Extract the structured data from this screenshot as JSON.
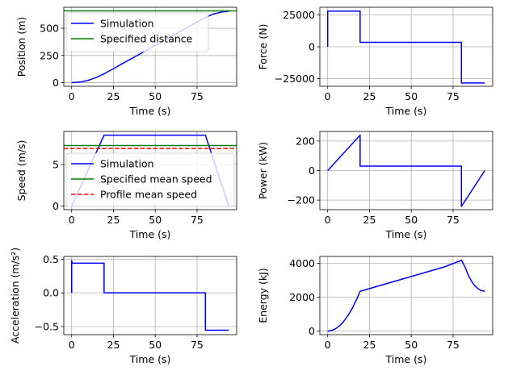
{
  "chart_data": [
    {
      "type": "line",
      "id": "position",
      "xlabel": "Time (s)",
      "ylabel": "Position (m)",
      "xlim": [
        -4.7,
        98.7
      ],
      "ylim": [
        -33,
        693
      ],
      "xticks": [
        0,
        25,
        50,
        75
      ],
      "yticks": [
        0,
        250,
        500
      ],
      "grid": true,
      "legend": "upper-left",
      "series": [
        {
          "name": "Simulation",
          "color": "#0000ff",
          "dash": "solid",
          "x": [
            0,
            5,
            10,
            15,
            19.4,
            25,
            30,
            40,
            50,
            60,
            70,
            80,
            85,
            90,
            94
          ],
          "y": [
            0,
            5.5,
            22,
            50,
            82,
            129,
            172,
            257,
            343,
            428,
            514,
            599,
            631,
            650,
            655
          ]
        },
        {
          "name": "Specified distance",
          "color": "#008000",
          "dash": "solid",
          "x": [
            -4.7,
            98.7
          ],
          "y": [
            660,
            660
          ]
        }
      ]
    },
    {
      "type": "line",
      "id": "force",
      "xlabel": "Time (s)",
      "ylabel": "Force (N)",
      "xlim": [
        -4.7,
        98.7
      ],
      "ylim": [
        -31000,
        31000
      ],
      "xticks": [
        0,
        25,
        50,
        75
      ],
      "yticks": [
        -25000,
        0,
        25000
      ],
      "grid": true,
      "series": [
        {
          "name": "Force",
          "color": "#0000ff",
          "dash": "solid",
          "x": [
            0,
            0,
            19.4,
            19.4,
            80,
            80,
            94
          ],
          "y": [
            0,
            28000,
            28000,
            3500,
            3500,
            -28400,
            -28400
          ]
        }
      ]
    },
    {
      "type": "line",
      "id": "speed",
      "xlabel": "Time (s)",
      "ylabel": "Speed (m/s)",
      "xlim": [
        -4.7,
        98.7
      ],
      "ylim": [
        -0.43,
        9.0
      ],
      "xticks": [
        0,
        25,
        50,
        75
      ],
      "yticks": [
        0,
        5
      ],
      "grid": true,
      "legend": "center-left",
      "series": [
        {
          "name": "Simulation",
          "color": "#0000ff",
          "dash": "solid",
          "x": [
            0,
            19.4,
            80,
            94
          ],
          "y": [
            0,
            8.55,
            8.55,
            0
          ]
        },
        {
          "name": "Specified mean speed",
          "color": "#008000",
          "dash": "solid",
          "x": [
            -4.7,
            98.7
          ],
          "y": [
            7.3,
            7.3
          ]
        },
        {
          "name": "Profile mean speed",
          "color": "#ff0000",
          "dash": "dashed",
          "x": [
            -4.7,
            98.7
          ],
          "y": [
            6.95,
            6.95
          ]
        }
      ]
    },
    {
      "type": "line",
      "id": "power",
      "xlabel": "Time (s)",
      "ylabel": "Power (kW)",
      "xlim": [
        -4.7,
        98.7
      ],
      "ylim": [
        -265,
        265
      ],
      "xticks": [
        0,
        25,
        50,
        75
      ],
      "yticks": [
        -200,
        0,
        200
      ],
      "grid": true,
      "series": [
        {
          "name": "Power",
          "color": "#0000ff",
          "dash": "solid",
          "x": [
            0,
            19.4,
            19.4,
            80,
            80,
            94
          ],
          "y": [
            0,
            240,
            30,
            30,
            -243,
            0
          ]
        }
      ]
    },
    {
      "type": "line",
      "id": "acceleration",
      "xlabel": "Time (s)",
      "ylabel": "Acceleration (m/s²)",
      "xlim": [
        -4.7,
        98.7
      ],
      "ylim": [
        -0.62,
        0.54
      ],
      "xticks": [
        0,
        25,
        50,
        75
      ],
      "yticks": [
        -0.5,
        0.0,
        0.5
      ],
      "ytickLabels": [
        "−0.5",
        "0.0",
        "0.5"
      ],
      "grid": true,
      "series": [
        {
          "name": "Acceleration",
          "color": "#0000ff",
          "dash": "solid",
          "x": [
            0,
            0,
            0.3,
            19.4,
            19.4,
            80,
            80,
            94
          ],
          "y": [
            0,
            0.48,
            0.44,
            0.44,
            0,
            0,
            -0.555,
            -0.555
          ]
        }
      ]
    },
    {
      "type": "line",
      "id": "energy",
      "xlabel": "Time (s)",
      "ylabel": "Energy (kJ)",
      "xlim": [
        -4.7,
        98.7
      ],
      "ylim": [
        -210,
        4410
      ],
      "xticks": [
        0,
        25,
        50,
        75
      ],
      "yticks": [
        0,
        2000,
        4000
      ],
      "grid": true,
      "series": [
        {
          "name": "Energy",
          "color": "#0000ff",
          "dash": "solid",
          "x": [
            0,
            2.5,
            5,
            7.5,
            10,
            12.5,
            15,
            17.5,
            19.4,
            30,
            40,
            50,
            60,
            70,
            80,
            82,
            84,
            86,
            88,
            90,
            92,
            94
          ],
          "y": [
            0,
            39,
            156,
            351,
            624,
            975,
            1404,
            1911,
            2350,
            2653,
            2939,
            3225,
            3511,
            3797,
            4180,
            3820,
            3330,
            2950,
            2680,
            2500,
            2390,
            2350
          ]
        }
      ]
    }
  ]
}
